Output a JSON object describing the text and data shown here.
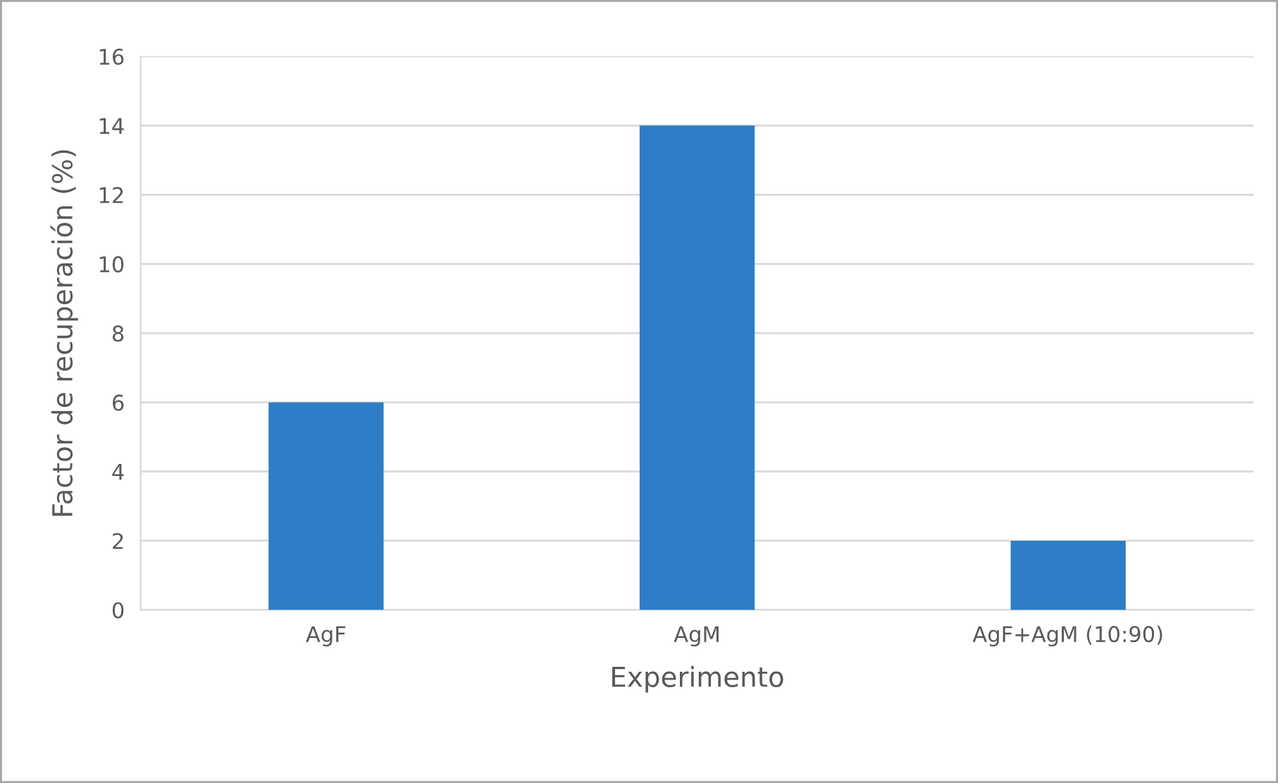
{
  "chart_data": {
    "type": "bar",
    "xlabel": "Experimento",
    "ylabel": "Factor de recuperación (%)",
    "categories": [
      "AgF",
      "AgM",
      "AgF+AgM (10:90)"
    ],
    "values": [
      6,
      14,
      2
    ],
    "color": "#2e7dc6",
    "ylim": [
      0,
      16
    ],
    "yticks": [
      0,
      2,
      4,
      6,
      8,
      10,
      12,
      14,
      16
    ],
    "grid": "y"
  }
}
